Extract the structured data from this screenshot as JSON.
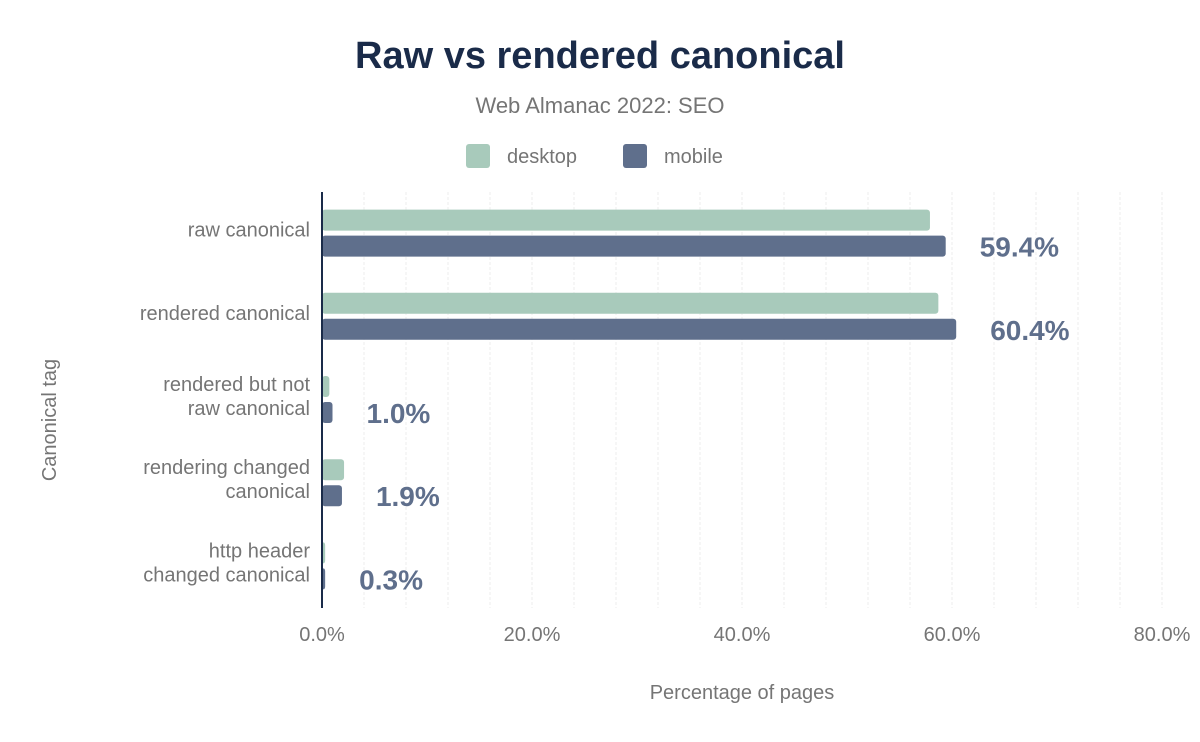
{
  "chart_data": {
    "type": "bar",
    "orientation": "horizontal",
    "title": "Raw vs rendered canonical",
    "subtitle": "Web Almanac 2022: SEO",
    "xlabel": "Percentage of pages",
    "ylabel": "Canonical tag",
    "categories": [
      [
        "raw canonical"
      ],
      [
        "rendered canonical"
      ],
      [
        "rendered but not",
        "raw canonical"
      ],
      [
        "rendering changed",
        "canonical"
      ],
      [
        "http header",
        "changed canonical"
      ]
    ],
    "series": [
      {
        "name": "desktop",
        "color": "#a8cabb",
        "values": [
          57.9,
          58.7,
          0.7,
          2.1,
          0.3
        ]
      },
      {
        "name": "mobile",
        "color": "#5f6f8c",
        "values": [
          59.4,
          60.4,
          1.0,
          1.9,
          0.3
        ]
      }
    ],
    "data_labels": [
      "59.4%",
      "60.4%",
      "1.0%",
      "1.9%",
      "0.3%"
    ],
    "xlim": [
      0,
      83
    ],
    "xticks": [
      0,
      20,
      40,
      60,
      80
    ],
    "xtick_labels": [
      "0.0%",
      "20.0%",
      "40.0%",
      "60.0%",
      "80.0%"
    ],
    "grid_step": 4,
    "grid": true,
    "legend_position": "top-center"
  }
}
